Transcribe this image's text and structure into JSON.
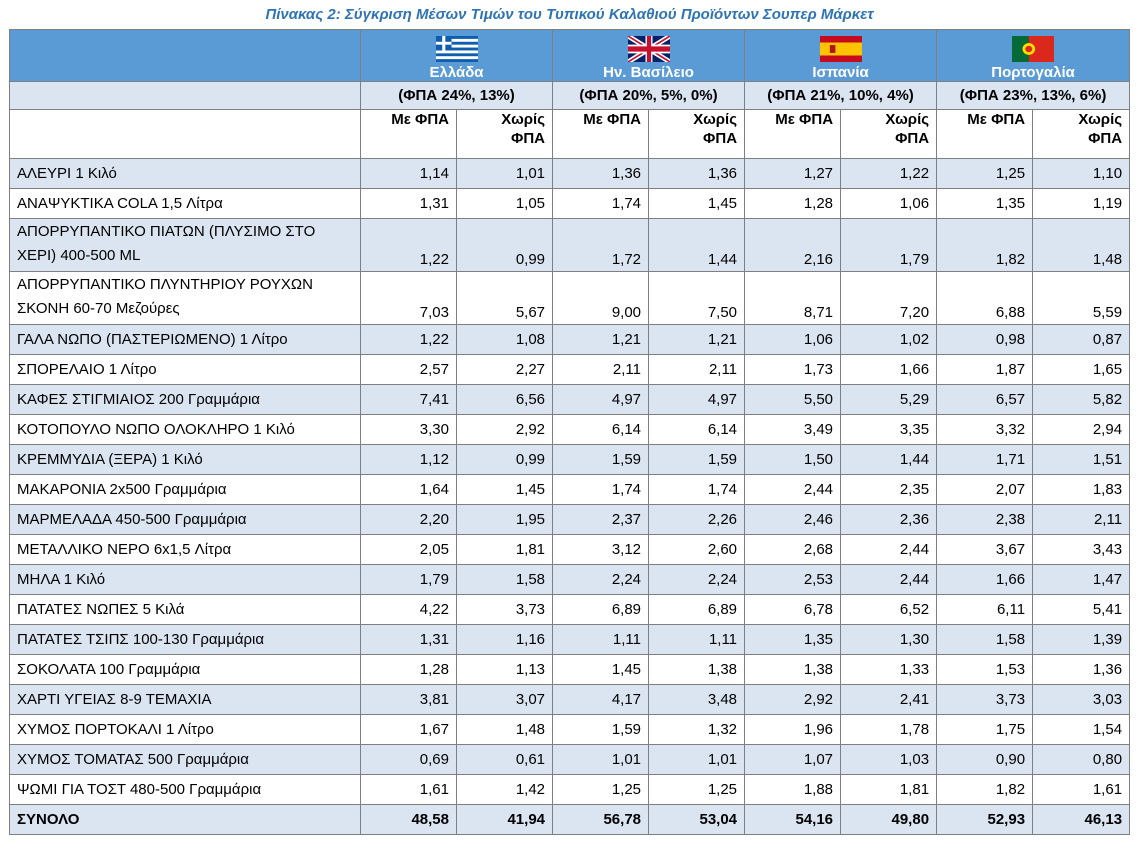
{
  "title": "Πίνακας 2: Σύγκριση Μέσων Τιμών του Τυπικού Καλαθιού Προϊόντων Σουπερ Μάρκετ",
  "countries": [
    {
      "name": "Ελλάδα",
      "vat": "(ΦΠΑ 24%, 13%)",
      "flag": "greece-flag-icon"
    },
    {
      "name": "Ην. Βασίλειο",
      "vat": "(ΦΠΑ 20%, 5%, 0%)",
      "flag": "uk-flag-icon"
    },
    {
      "name": "Ισπανία",
      "vat": "(ΦΠΑ 21%, 10%, 4%)",
      "flag": "spain-flag-icon"
    },
    {
      "name": "Πορτογαλία",
      "vat": "(ΦΠΑ 23%, 13%, 6%)",
      "flag": "portugal-flag-icon"
    }
  ],
  "subheaders": {
    "with_vat": "Με ΦΠΑ",
    "without_vat_1": "Χωρίς",
    "without_vat_2": "ΦΠΑ"
  },
  "rows": [
    {
      "name": "ΑΛΕΥΡΙ 1 Κιλό",
      "values": [
        "1,14",
        "1,01",
        "1,36",
        "1,36",
        "1,27",
        "1,22",
        "1,25",
        "1,10"
      ]
    },
    {
      "name": "ΑΝΑΨΥΚΤΙΚΑ COLA 1,5 Λίτρα",
      "values": [
        "1,31",
        "1,05",
        "1,74",
        "1,45",
        "1,28",
        "1,06",
        "1,35",
        "1,19"
      ]
    },
    {
      "name": "ΑΠΟΡΡΥΠΑΝΤΙΚΟ ΠΙΑΤΩΝ (ΠΛΥΣΙΜΟ ΣΤΟ ΧΕΡΙ) 400-500 ML",
      "values": [
        "1,22",
        "0,99",
        "1,72",
        "1,44",
        "2,16",
        "1,79",
        "1,82",
        "1,48"
      ]
    },
    {
      "name": "ΑΠΟΡΡΥΠΑΝΤΙΚΟ ΠΛΥΝΤΗΡΙΟΥ ΡΟΥΧΩΝ ΣΚΟΝΗ 60-70 Μεζούρες",
      "values": [
        "7,03",
        "5,67",
        "9,00",
        "7,50",
        "8,71",
        "7,20",
        "6,88",
        "5,59"
      ]
    },
    {
      "name": "ΓΑΛΑ ΝΩΠΟ (ΠΑΣΤΕΡΙΩΜΕΝΟ) 1 Λίτρο",
      "values": [
        "1,22",
        "1,08",
        "1,21",
        "1,21",
        "1,06",
        "1,02",
        "0,98",
        "0,87"
      ]
    },
    {
      "name": "ΣΠΟΡΕΛΑΙΟ 1 Λίτρο",
      "values": [
        "2,57",
        "2,27",
        "2,11",
        "2,11",
        "1,73",
        "1,66",
        "1,87",
        "1,65"
      ]
    },
    {
      "name": "ΚΑΦΕΣ ΣΤΙΓΜΙΑΙΟΣ 200 Γραμμάρια",
      "values": [
        "7,41",
        "6,56",
        "4,97",
        "4,97",
        "5,50",
        "5,29",
        "6,57",
        "5,82"
      ]
    },
    {
      "name": "ΚΟΤΟΠΟΥΛΟ ΝΩΠΟ ΟΛΟΚΛΗΡΟ 1 Κιλό",
      "values": [
        "3,30",
        "2,92",
        "6,14",
        "6,14",
        "3,49",
        "3,35",
        "3,32",
        "2,94"
      ]
    },
    {
      "name": "ΚΡΕΜΜΥΔΙΑ (ΞΕΡΑ) 1 Κιλό",
      "values": [
        "1,12",
        "0,99",
        "1,59",
        "1,59",
        "1,50",
        "1,44",
        "1,71",
        "1,51"
      ]
    },
    {
      "name": "ΜΑΚΑΡΟΝΙΑ 2x500 Γραμμάρια",
      "values": [
        "1,64",
        "1,45",
        "1,74",
        "1,74",
        "2,44",
        "2,35",
        "2,07",
        "1,83"
      ]
    },
    {
      "name": "ΜΑΡΜΕΛΑΔΑ 450-500 Γραμμάρια",
      "values": [
        "2,20",
        "1,95",
        "2,37",
        "2,26",
        "2,46",
        "2,36",
        "2,38",
        "2,11"
      ]
    },
    {
      "name": "ΜΕΤΑΛΛΙΚΟ ΝΕΡΟ 6x1,5 Λίτρα",
      "values": [
        "2,05",
        "1,81",
        "3,12",
        "2,60",
        "2,68",
        "2,44",
        "3,67",
        "3,43"
      ]
    },
    {
      "name": "ΜΗΛΑ 1 Κιλό",
      "values": [
        "1,79",
        "1,58",
        "2,24",
        "2,24",
        "2,53",
        "2,44",
        "1,66",
        "1,47"
      ]
    },
    {
      "name": "ΠΑΤΑΤΕΣ ΝΩΠΕΣ 5 Κιλά",
      "values": [
        "4,22",
        "3,73",
        "6,89",
        "6,89",
        "6,78",
        "6,52",
        "6,11",
        "5,41"
      ]
    },
    {
      "name": "ΠΑΤΑΤΕΣ ΤΣΙΠΣ 100-130 Γραμμάρια",
      "values": [
        "1,31",
        "1,16",
        "1,11",
        "1,11",
        "1,35",
        "1,30",
        "1,58",
        "1,39"
      ]
    },
    {
      "name": "ΣΟΚΟΛΑΤΑ 100 Γραμμάρια",
      "values": [
        "1,28",
        "1,13",
        "1,45",
        "1,38",
        "1,38",
        "1,33",
        "1,53",
        "1,36"
      ]
    },
    {
      "name": "ΧΑΡΤΙ ΥΓΕΙΑΣ 8-9 ΤΕΜΑΧΙΑ",
      "values": [
        "3,81",
        "3,07",
        "4,17",
        "3,48",
        "2,92",
        "2,41",
        "3,73",
        "3,03"
      ]
    },
    {
      "name": "ΧΥΜΟΣ ΠΟΡΤΟΚΑΛΙ 1 Λίτρο",
      "values": [
        "1,67",
        "1,48",
        "1,59",
        "1,32",
        "1,96",
        "1,78",
        "1,75",
        "1,54"
      ]
    },
    {
      "name": "ΧΥΜΟΣ ΤΟΜΑΤΑΣ 500 Γραμμάρια",
      "values": [
        "0,69",
        "0,61",
        "1,01",
        "1,01",
        "1,07",
        "1,03",
        "0,90",
        "0,80"
      ]
    },
    {
      "name": "ΨΩΜΙ ΓΙΑ ΤΟΣΤ 480-500 Γραμμάρια",
      "values": [
        "1,61",
        "1,42",
        "1,25",
        "1,25",
        "1,88",
        "1,81",
        "1,82",
        "1,61"
      ]
    }
  ],
  "total": {
    "name": "ΣΥΝΟΛΟ",
    "values": [
      "48,58",
      "41,94",
      "56,78",
      "53,04",
      "54,16",
      "49,80",
      "52,93",
      "46,13"
    ]
  },
  "colors": {
    "header": "#5b9bd5",
    "band": "#dbe5f1",
    "title": "#2e74b5"
  }
}
